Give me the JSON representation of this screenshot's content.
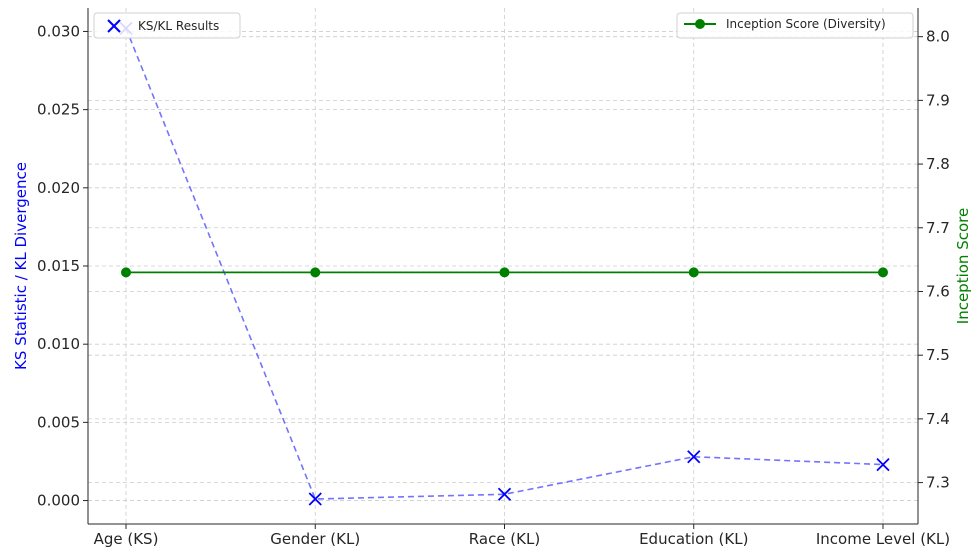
{
  "chart_data": {
    "type": "line",
    "categories": [
      "Age (KS)",
      "Gender (KL)",
      "Race (KL)",
      "Education (KL)",
      "Income Level (KL)"
    ],
    "series": [
      {
        "name": "KS/KL Results",
        "axis": "left",
        "values": [
          0.0302,
          0.0001,
          0.0004,
          0.0028,
          0.0023
        ],
        "color": "#0000ff",
        "line_style": "dashed",
        "marker": "x"
      },
      {
        "name": "Inception Score (Diversity)",
        "axis": "right",
        "values": [
          7.63,
          7.63,
          7.63,
          7.63,
          7.63
        ],
        "color": "#008000",
        "line_style": "solid",
        "marker": "circle"
      }
    ],
    "ylabel": "KS Statistic / KL Divergence",
    "ylabel_color": "#0000ff",
    "y2label": "Inception Score",
    "y2label_color": "#008000",
    "ylim": [
      -0.0015,
      0.0315
    ],
    "y2lim": [
      7.235,
      8.045
    ],
    "yticks": [
      "0.000",
      "0.005",
      "0.010",
      "0.015",
      "0.020",
      "0.025",
      "0.030"
    ],
    "y2ticks": [
      "7.3",
      "7.4",
      "7.5",
      "7.6",
      "7.7",
      "7.8",
      "7.9",
      "8.0"
    ],
    "grid": true,
    "legend_left_placement": "upper-left",
    "legend_right_placement": "upper-right"
  }
}
